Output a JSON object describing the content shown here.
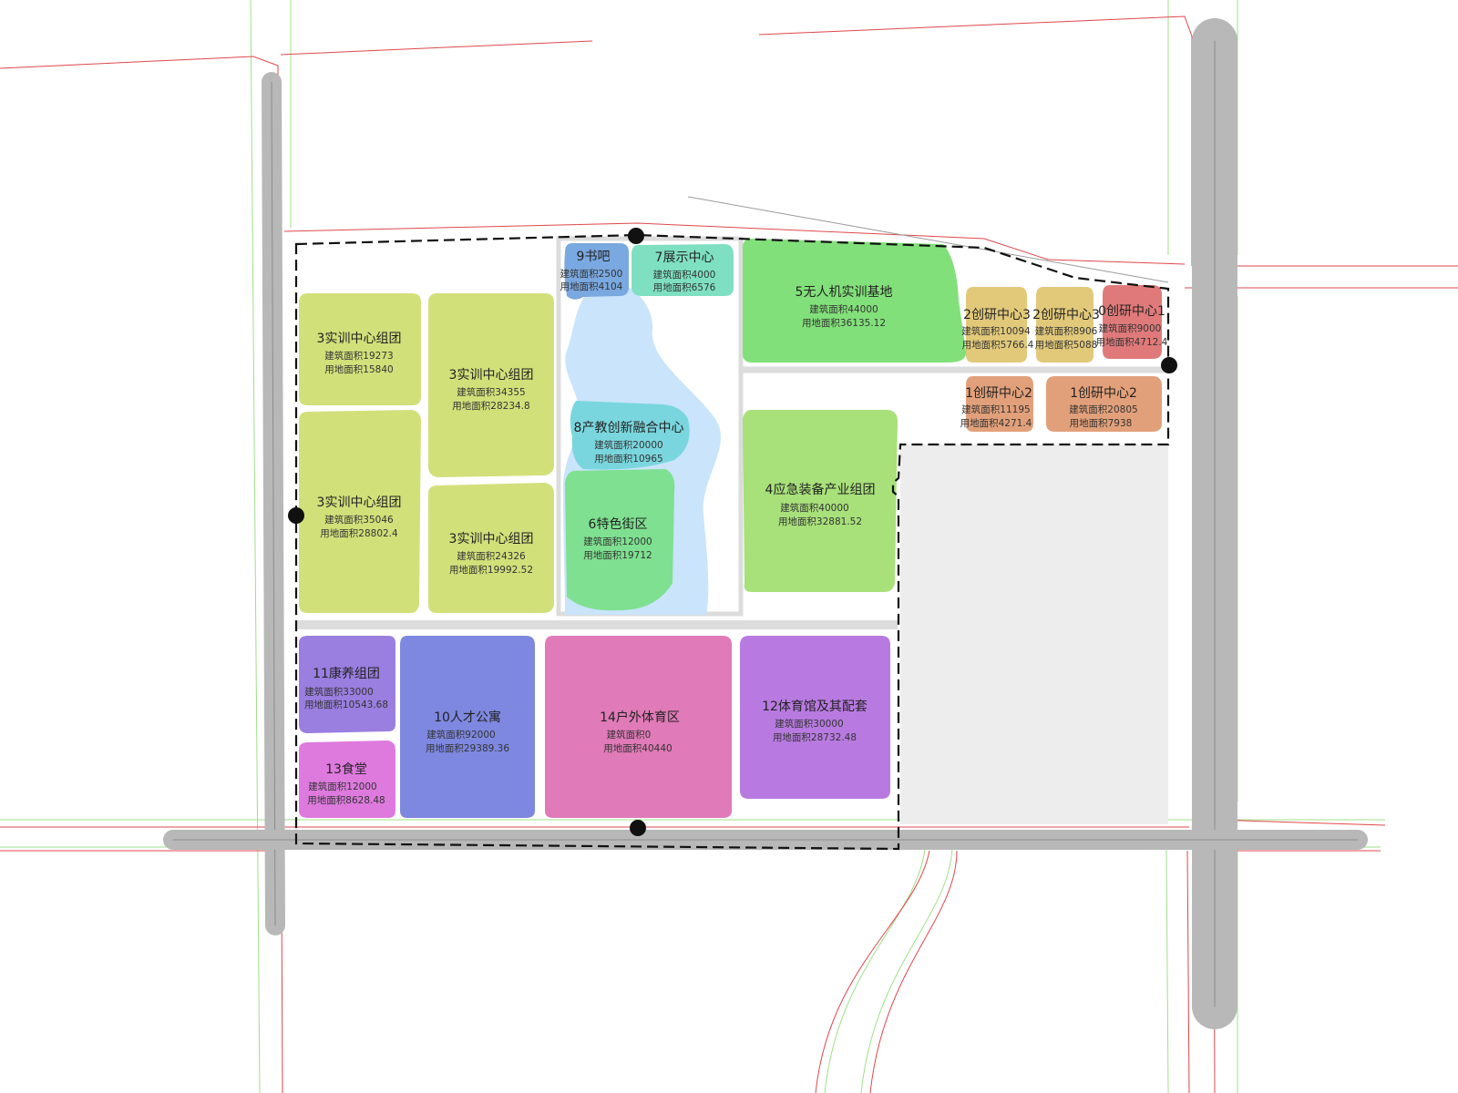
{
  "colors": {
    "background": "#ffffff",
    "road": "#b8b8b8",
    "road_center": "#8c8c8c",
    "red_line": "#e0474c",
    "green_line": "#9fe08a",
    "boundary": "#111111",
    "blank_area": "#ededed",
    "water": "#c9e4fb"
  },
  "plots": [
    {
      "id": "p3a",
      "title": "3实训中心组团",
      "area": "建筑面积19273",
      "land": "用地面积15840",
      "color": "#d2e07a"
    },
    {
      "id": "p3b",
      "title": "3实训中心组团",
      "area": "建筑面积35046",
      "land": "用地面积28802.4",
      "color": "#d2e07a"
    },
    {
      "id": "p3c",
      "title": "3实训中心组团",
      "area": "建筑面积34355",
      "land": "用地面积28234.8",
      "color": "#d2e07a"
    },
    {
      "id": "p3d",
      "title": "3实训中心组团",
      "area": "建筑面积24326",
      "land": "用地面积19992.52",
      "color": "#d2e07a"
    },
    {
      "id": "p9",
      "title": "9书吧",
      "area": "建筑面积2500",
      "land": "用地面积4104",
      "color": "#7aa8e0"
    },
    {
      "id": "p7",
      "title": "7展示中心",
      "area": "建筑面积4000",
      "land": "用地面积6576",
      "color": "#7ee0c0"
    },
    {
      "id": "p8",
      "title": "8产教创新融合中心",
      "area": "建筑面积20000",
      "land": "用地面积10965",
      "color": "#7ad6de"
    },
    {
      "id": "p6",
      "title": "6特色街区",
      "area": "建筑面积12000",
      "land": "用地面积19712",
      "color": "#7ee090"
    },
    {
      "id": "p5",
      "title": "5无人机实训基地",
      "area": "建筑面积44000",
      "land": "用地面积36135.12",
      "color": "#82e07a"
    },
    {
      "id": "p4",
      "title": "4应急装备产业组团",
      "area": "建筑面积40000",
      "land": "用地面积32881.52",
      "color": "#a8e07a"
    },
    {
      "id": "p2a",
      "title": "2创研中心3",
      "area": "建筑面积10094",
      "land": "用地面积5766.4",
      "color": "#e2c97a"
    },
    {
      "id": "p2b",
      "title": "2创研中心3",
      "area": "建筑面积8906",
      "land": "用地面积5088",
      "color": "#e2c97a"
    },
    {
      "id": "p0",
      "title": "0创研中心1",
      "area": "建筑面积9000",
      "land": "用地面积4712.4",
      "color": "#e07a7a"
    },
    {
      "id": "p1a",
      "title": "1创研中心2",
      "area": "建筑面积11195",
      "land": "用地面积4271.4",
      "color": "#e2a07a"
    },
    {
      "id": "p1b",
      "title": "1创研中心2",
      "area": "建筑面积20805",
      "land": "用地面积7938",
      "color": "#e2a07a"
    },
    {
      "id": "p11",
      "title": "11康养组团",
      "area": "建筑面积33000",
      "land": "用地面积10543.68",
      "color": "#9a7ee0"
    },
    {
      "id": "p13",
      "title": "13食堂",
      "area": "建筑面积12000",
      "land": "用地面积8628.48",
      "color": "#de7ade"
    },
    {
      "id": "p10",
      "title": "10人才公寓",
      "area": "建筑面积92000",
      "land": "用地面积29389.36",
      "color": "#7e88e0"
    },
    {
      "id": "p14",
      "title": "14户外体育区",
      "area": "建筑面积0",
      "land": "用地面积40440",
      "color": "#e07ab8"
    },
    {
      "id": "p12",
      "title": "12体育馆及其配套",
      "area": "建筑面积30000",
      "land": "用地面积28732.48",
      "color": "#b87ae0"
    }
  ]
}
